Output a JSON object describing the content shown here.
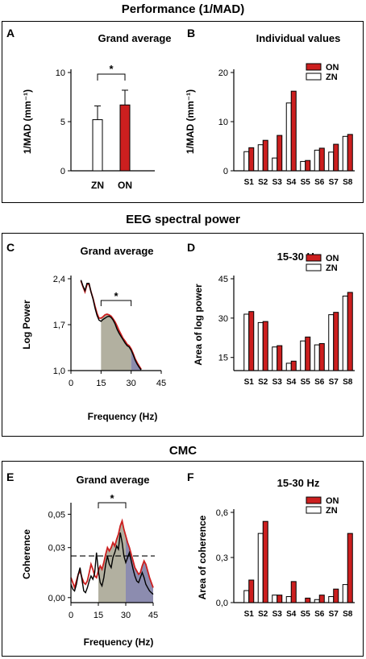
{
  "sections": [
    {
      "title": "Performance (1/MAD)"
    },
    {
      "title": "EEG spectral power"
    },
    {
      "title": "CMC"
    }
  ],
  "colors": {
    "on": "#cc1f1f",
    "zn": "#ffffff",
    "gray_fill": "#aaa796",
    "blue_fill": "#7f80a6",
    "black": "#000000"
  },
  "chart_data": [
    {
      "panel": "A",
      "type": "bar",
      "title": "Grand average",
      "ylabel": "1/MAD (mm⁻¹)",
      "categories": [
        "ZN",
        "ON"
      ],
      "values": [
        5.2,
        6.7
      ],
      "errors": [
        1.4,
        1.5
      ],
      "ylim": [
        0,
        10
      ],
      "yticks": [
        "0",
        "5",
        "10"
      ],
      "yticks_values": [
        0,
        5,
        10
      ],
      "significance": "*"
    },
    {
      "panel": "B",
      "type": "bar",
      "title": "Individual values",
      "ylabel": "1/MAD (mm⁻¹)",
      "categories": [
        "S1",
        "S2",
        "S3",
        "S4",
        "S5",
        "S6",
        "S7",
        "S8"
      ],
      "series": [
        {
          "name": "ON",
          "values": [
            4.7,
            6.2,
            7.2,
            16.2,
            2.1,
            4.6,
            5.4,
            7.4
          ]
        },
        {
          "name": "ZN",
          "values": [
            3.9,
            5.3,
            2.6,
            13.8,
            1.9,
            4.2,
            3.8,
            7.0
          ]
        }
      ],
      "ylim": [
        0,
        20
      ],
      "yticks": [
        "0",
        "10",
        "20"
      ],
      "yticks_values": [
        0,
        10,
        20
      ],
      "legend": [
        "ON",
        "ZN"
      ]
    },
    {
      "panel": "C",
      "type": "line",
      "title": "Grand average",
      "ylabel": "Log Power",
      "xlabel": "Frequency (Hz)",
      "xticks": [
        "0",
        "15",
        "30",
        "45"
      ],
      "xticks_values": [
        0,
        15,
        30,
        45
      ],
      "yticks": [
        "1,0",
        "1,7",
        "2,4"
      ],
      "yticks_values": [
        1.0,
        1.7,
        2.4
      ],
      "xlim": [
        0,
        45
      ],
      "ylim": [
        1.0,
        2.4
      ],
      "x": [
        5,
        6,
        7,
        8,
        9,
        10,
        11,
        12,
        13,
        14,
        15,
        16,
        17,
        18,
        19,
        20,
        21,
        22,
        23,
        24,
        25,
        26,
        27,
        28,
        29,
        30,
        31,
        32,
        33,
        34,
        35
      ],
      "series": [
        {
          "name": "ON",
          "values": [
            2.37,
            2.28,
            2.2,
            2.31,
            2.32,
            2.2,
            2.1,
            1.98,
            1.87,
            1.8,
            1.8,
            1.82,
            1.85,
            1.86,
            1.85,
            1.83,
            1.79,
            1.74,
            1.68,
            1.61,
            1.55,
            1.49,
            1.45,
            1.4,
            1.38,
            1.33,
            1.26,
            1.18,
            1.12,
            1.07,
            1.02
          ]
        },
        {
          "name": "ZN",
          "values": [
            2.38,
            2.29,
            2.22,
            2.33,
            2.33,
            2.2,
            2.09,
            1.95,
            1.84,
            1.77,
            1.75,
            1.78,
            1.8,
            1.82,
            1.83,
            1.81,
            1.77,
            1.71,
            1.63,
            1.57,
            1.52,
            1.47,
            1.42,
            1.38,
            1.36,
            1.31,
            1.24,
            1.16,
            1.1,
            1.05,
            1.01
          ]
        }
      ],
      "shade_ranges": [
        [
          15,
          30
        ],
        [
          30,
          35
        ]
      ],
      "significance": "*"
    },
    {
      "panel": "D",
      "type": "bar",
      "title": "15-30 Hz",
      "ylabel": "Area of log power",
      "categories": [
        "S1",
        "S2",
        "S3",
        "S4",
        "S5",
        "S6",
        "S7",
        "S8"
      ],
      "series": [
        {
          "name": "ON",
          "values": [
            32.5,
            28.7,
            19.5,
            13.6,
            22.8,
            20.3,
            32.2,
            39.8
          ]
        },
        {
          "name": "ZN",
          "values": [
            31.5,
            28.3,
            19.0,
            12.8,
            21.3,
            19.8,
            31.3,
            38.4
          ]
        }
      ],
      "ylim": [
        10,
        45
      ],
      "yticks": [
        "15",
        "30",
        "45"
      ],
      "yticks_values": [
        15,
        30,
        45
      ],
      "legend": [
        "ON",
        "ZN"
      ]
    },
    {
      "panel": "E",
      "type": "line",
      "title": "Grand average",
      "ylabel": "Coherence",
      "xlabel": "Frequency (Hz)",
      "xticks": [
        "0",
        "15",
        "30",
        "45"
      ],
      "xticks_values": [
        0,
        15,
        30,
        45
      ],
      "yticks": [
        "0,00",
        "0,03",
        "0,05"
      ],
      "yticks_values": [
        0.0,
        0.03,
        0.05
      ],
      "xlim": [
        0,
        45
      ],
      "ylim": [
        -0.003,
        0.055
      ],
      "x": [
        0,
        1,
        2,
        3,
        4,
        5,
        6,
        7,
        8,
        9,
        10,
        11,
        12,
        13,
        14,
        15,
        16,
        17,
        18,
        19,
        20,
        21,
        22,
        23,
        24,
        25,
        26,
        27,
        28,
        29,
        30,
        31,
        32,
        33,
        34,
        35,
        36,
        37,
        38,
        39,
        40,
        41,
        42,
        43,
        44,
        45
      ],
      "series": [
        {
          "name": "ON",
          "values": [
            0.012,
            0.009,
            0.006,
            0.01,
            0.014,
            0.016,
            0.012,
            0.009,
            0.008,
            0.01,
            0.015,
            0.02,
            0.017,
            0.013,
            0.012,
            0.016,
            0.019,
            0.017,
            0.021,
            0.026,
            0.03,
            0.028,
            0.03,
            0.033,
            0.031,
            0.035,
            0.038,
            0.043,
            0.046,
            0.041,
            0.037,
            0.033,
            0.03,
            0.026,
            0.022,
            0.018,
            0.016,
            0.014,
            0.015,
            0.019,
            0.022,
            0.02,
            0.016,
            0.012,
            0.009,
            0.006
          ]
        },
        {
          "name": "ZN",
          "values": [
            0.008,
            0.005,
            0.004,
            0.008,
            0.014,
            0.018,
            0.011,
            0.004,
            0.003,
            0.006,
            0.01,
            0.013,
            0.011,
            0.015,
            0.027,
            0.016,
            0.009,
            0.007,
            0.012,
            0.02,
            0.025,
            0.02,
            0.018,
            0.024,
            0.027,
            0.031,
            0.029,
            0.039,
            0.033,
            0.025,
            0.021,
            0.024,
            0.027,
            0.022,
            0.017,
            0.013,
            0.01,
            0.009,
            0.012,
            0.015,
            0.012,
            0.008,
            0.006,
            0.004,
            0.003,
            0.002
          ]
        }
      ],
      "threshold": 0.025,
      "shade_ranges": [
        [
          15,
          30
        ],
        [
          30,
          45
        ]
      ],
      "significance": "*"
    },
    {
      "panel": "F",
      "type": "bar",
      "title": "15-30 Hz",
      "ylabel": "Area of coherence",
      "categories": [
        "S1",
        "S2",
        "S3",
        "S4",
        "S5",
        "S6",
        "S7",
        "S8"
      ],
      "series": [
        {
          "name": "ON",
          "values": [
            0.15,
            0.54,
            0.05,
            0.14,
            0.03,
            0.05,
            0.09,
            0.46
          ]
        },
        {
          "name": "ZN",
          "values": [
            0.08,
            0.46,
            0.05,
            0.04,
            0.0,
            0.02,
            0.04,
            0.12
          ]
        }
      ],
      "ylim": [
        0,
        0.6
      ],
      "yticks": [
        "0,0",
        "0,3",
        "0,6"
      ],
      "yticks_values": [
        0,
        0.3,
        0.6
      ],
      "legend": [
        "ON",
        "ZN"
      ]
    }
  ]
}
